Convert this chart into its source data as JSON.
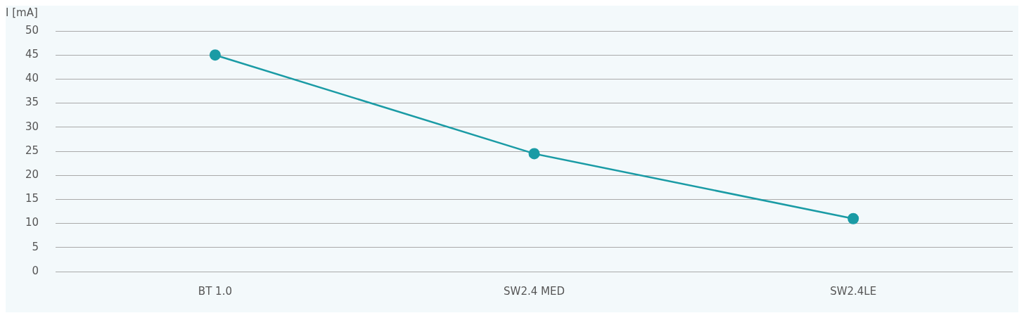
{
  "chart_data": {
    "type": "line",
    "ylabel": "I [mA]",
    "categories": [
      "BT 1.0",
      "SW2.4 MED",
      "SW2.4LE"
    ],
    "series": [
      {
        "color": "#1a9ba5",
        "values": [
          45,
          24.5,
          11
        ]
      }
    ],
    "ylim": [
      0,
      50
    ],
    "yticks": [
      0,
      5,
      10,
      15,
      20,
      25,
      30,
      35,
      40,
      45,
      50
    ],
    "grid": "y",
    "legend": false,
    "marker": "circle",
    "line_style": "solid"
  }
}
